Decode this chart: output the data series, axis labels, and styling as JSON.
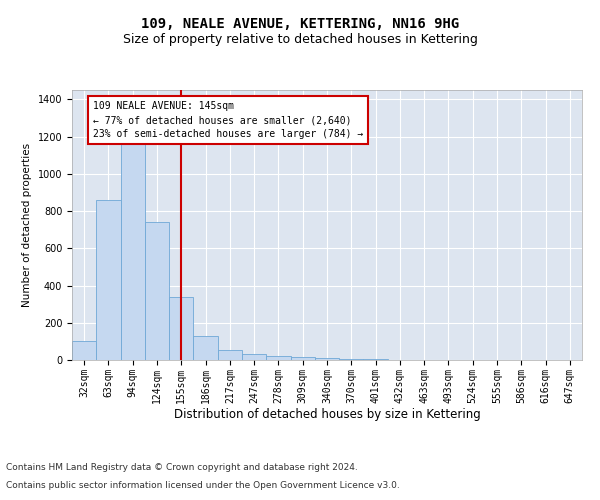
{
  "title1": "109, NEALE AVENUE, KETTERING, NN16 9HG",
  "title2": "Size of property relative to detached houses in Kettering",
  "xlabel": "Distribution of detached houses by size in Kettering",
  "ylabel": "Number of detached properties",
  "categories": [
    "32sqm",
    "63sqm",
    "94sqm",
    "124sqm",
    "155sqm",
    "186sqm",
    "217sqm",
    "247sqm",
    "278sqm",
    "309sqm",
    "340sqm",
    "370sqm",
    "401sqm",
    "432sqm",
    "463sqm",
    "493sqm",
    "524sqm",
    "555sqm",
    "586sqm",
    "616sqm",
    "647sqm"
  ],
  "values": [
    103,
    860,
    1180,
    740,
    340,
    130,
    55,
    30,
    20,
    15,
    10,
    8,
    3,
    1,
    1,
    0,
    0,
    0,
    0,
    0,
    0
  ],
  "bar_color": "#c5d8f0",
  "bar_edge_color": "#6fa8d6",
  "vline_x_index": 4,
  "vline_color": "#cc0000",
  "annotation_text": "109 NEALE AVENUE: 145sqm\n← 77% of detached houses are smaller (2,640)\n23% of semi-detached houses are larger (784) →",
  "annotation_box_color": "#ffffff",
  "annotation_box_edge_color": "#cc0000",
  "ylim": [
    0,
    1450
  ],
  "yticks": [
    0,
    200,
    400,
    600,
    800,
    1000,
    1200,
    1400
  ],
  "background_color": "#dde5f0",
  "footer_line1": "Contains HM Land Registry data © Crown copyright and database right 2024.",
  "footer_line2": "Contains public sector information licensed under the Open Government Licence v3.0.",
  "title1_fontsize": 10,
  "title2_fontsize": 9,
  "xlabel_fontsize": 8.5,
  "ylabel_fontsize": 7.5,
  "tick_fontsize": 7,
  "annotation_fontsize": 7,
  "footer_fontsize": 6.5
}
